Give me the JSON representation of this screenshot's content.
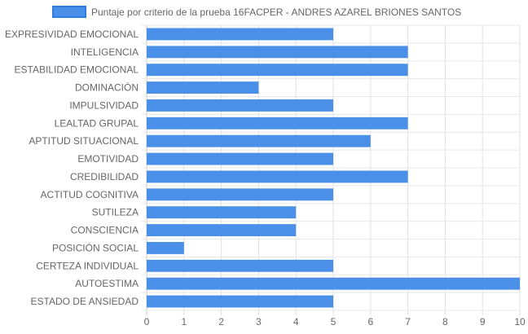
{
  "chart_data": {
    "type": "bar",
    "orientation": "horizontal",
    "categories": [
      "EXPRESIVIDAD EMOCIONAL",
      "INTELIGENCIA",
      "ESTABILIDAD EMOCIONAL",
      "DOMINACIÓN",
      "IMPULSIVIDAD",
      "LEALTAD GRUPAL",
      "APTITUD SITUACIONAL",
      "EMOTIVIDAD",
      "CREDIBILIDAD",
      "ACTITUD COGNITIVA",
      "SUTILEZA",
      "CONSCIENCIA",
      "POSICIÓN SOCIAL",
      "CERTEZA INDIVIDUAL",
      "AUTOESTIMA",
      "ESTADO DE ANSIEDAD"
    ],
    "series": [
      {
        "name": "Puntaje por criterio de la prueba 16FACPER - ANDRES AZAREL BRIONES SANTOS",
        "values": [
          5,
          7,
          7,
          3,
          5,
          7,
          6,
          5,
          7,
          5,
          4,
          4,
          1,
          5,
          10,
          5
        ],
        "color": "#4a90e8"
      }
    ],
    "xlim": [
      0,
      10
    ],
    "xticks": [
      "0",
      "1",
      "2",
      "3",
      "4",
      "5",
      "6",
      "7",
      "8",
      "9",
      "10"
    ],
    "grid": true,
    "legend_position": "top"
  }
}
